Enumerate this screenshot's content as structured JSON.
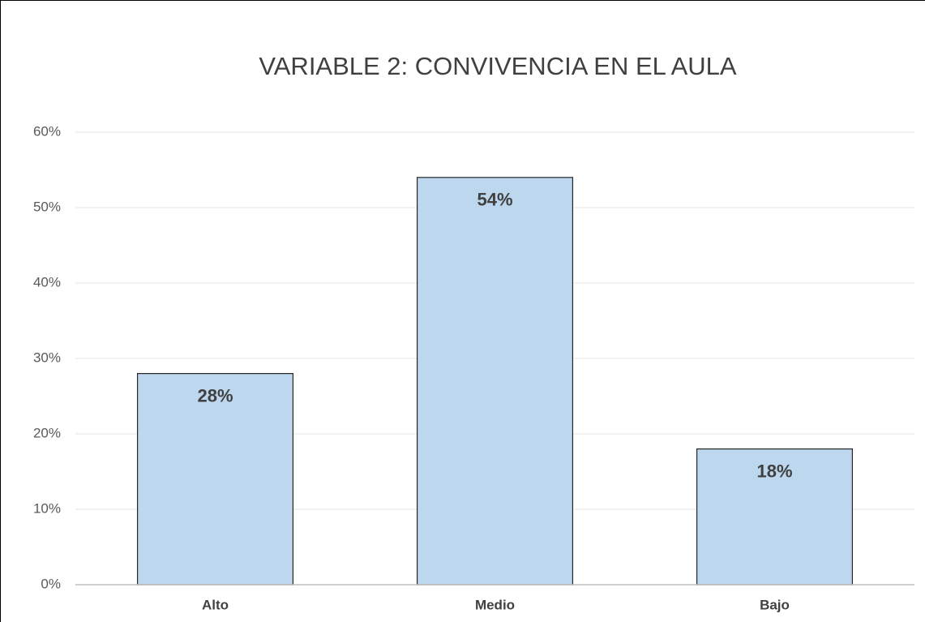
{
  "chart_data": {
    "type": "bar",
    "title": "VARIABLE 2: CONVIVENCIA EN EL AULA",
    "categories": [
      "Alto",
      "Medio",
      "Bajo"
    ],
    "values": [
      28,
      54,
      18
    ],
    "value_labels": [
      "28%",
      "54%",
      "18%"
    ],
    "color": "#bdd7ee",
    "ylim": [
      0,
      60
    ],
    "yticks": [
      {
        "value": 0,
        "label": "0%"
      },
      {
        "value": 10,
        "label": "10%"
      },
      {
        "value": 20,
        "label": "20%"
      },
      {
        "value": 30,
        "label": "30%"
      },
      {
        "value": 40,
        "label": "40%"
      },
      {
        "value": 50,
        "label": "50%"
      },
      {
        "value": 60,
        "label": "60%"
      }
    ],
    "grid": true
  }
}
